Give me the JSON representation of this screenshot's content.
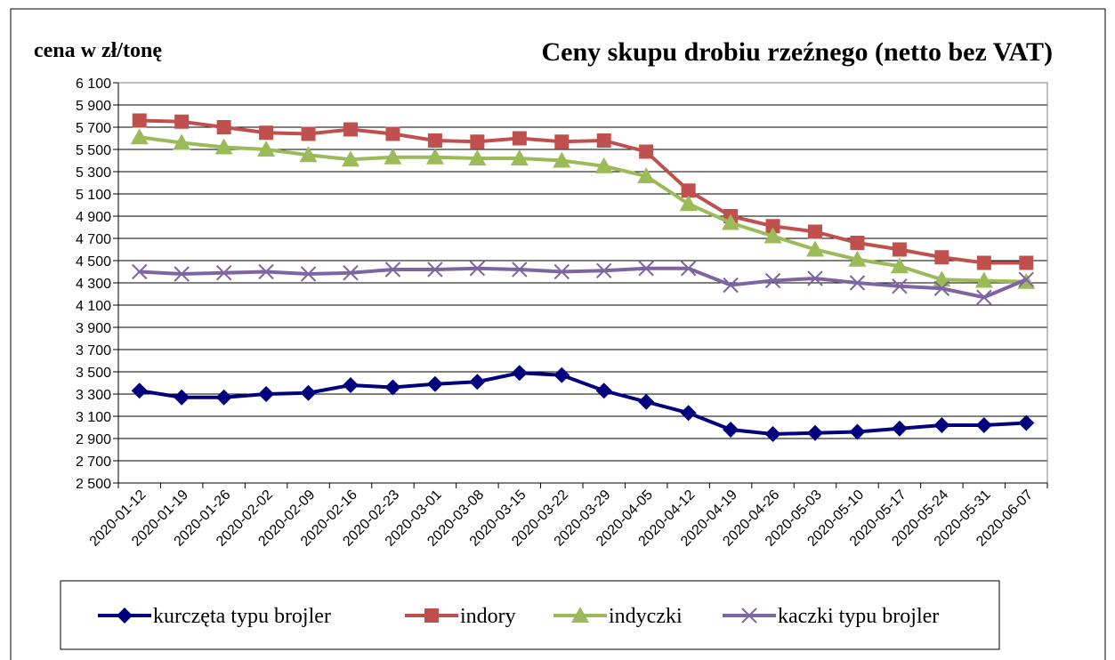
{
  "chart_data": {
    "type": "line",
    "title": "Ceny skupu drobiu rzeźnego (netto bez VAT)",
    "y_label": "cena w zł/tonę",
    "categories": [
      "2020-01-12",
      "2020-01-19",
      "2020-01-26",
      "2020-02-02",
      "2020-02-09",
      "2020-02-16",
      "2020-02-23",
      "2020-03-01",
      "2020-03-08",
      "2020-03-15",
      "2020-03-22",
      "2020-03-29",
      "2020-04-05",
      "2020-04-12",
      "2020-04-19",
      "2020-04-26",
      "2020-05-03",
      "2020-05-10",
      "2020-05-17",
      "2020-05-24",
      "2020-05-31",
      "2020-06-07"
    ],
    "series": [
      {
        "name": "kurczęta typu brojler",
        "color": "#00007f",
        "marker": "diamond",
        "values": [
          3330,
          3270,
          3270,
          3300,
          3310,
          3380,
          3360,
          3390,
          3410,
          3490,
          3470,
          3330,
          3230,
          3130,
          2980,
          2940,
          2950,
          2960,
          2990,
          3020,
          3020,
          3040
        ]
      },
      {
        "name": "indory",
        "color": "#c0504d",
        "marker": "square",
        "values": [
          5760,
          5750,
          5700,
          5650,
          5640,
          5680,
          5640,
          5580,
          5570,
          5600,
          5570,
          5580,
          5480,
          5130,
          4900,
          4810,
          4760,
          4660,
          4600,
          4530,
          4480,
          4480
        ]
      },
      {
        "name": "indyczki",
        "color": "#9bbb59",
        "marker": "triangle",
        "values": [
          5610,
          5560,
          5520,
          5500,
          5450,
          5410,
          5430,
          5430,
          5420,
          5420,
          5400,
          5350,
          5260,
          5010,
          4840,
          4720,
          4600,
          4510,
          4450,
          4330,
          4320,
          4310
        ]
      },
      {
        "name": "kaczki typu brojler",
        "color": "#8064a2",
        "marker": "x",
        "values": [
          4400,
          4380,
          4390,
          4400,
          4380,
          4390,
          4420,
          4420,
          4430,
          4420,
          4400,
          4410,
          4430,
          4430,
          4280,
          4320,
          4340,
          4300,
          4270,
          4250,
          4170,
          4330
        ]
      }
    ],
    "ylim": [
      2500,
      6100
    ],
    "yticks": [
      {
        "value": 2500,
        "label": "2 500"
      },
      {
        "value": 2700,
        "label": "2 700"
      },
      {
        "value": 2900,
        "label": "2 900"
      },
      {
        "value": 3100,
        "label": "3 100"
      },
      {
        "value": 3300,
        "label": "3 300"
      },
      {
        "value": 3500,
        "label": "3 500"
      },
      {
        "value": 3700,
        "label": "3 700"
      },
      {
        "value": 3900,
        "label": "3 900"
      },
      {
        "value": 4100,
        "label": "4 100"
      },
      {
        "value": 4300,
        "label": "4 300"
      },
      {
        "value": 4500,
        "label": "4 500"
      },
      {
        "value": 4700,
        "label": "4 700"
      },
      {
        "value": 4900,
        "label": "4 900"
      },
      {
        "value": 5100,
        "label": "5 100"
      },
      {
        "value": 5300,
        "label": "5 300"
      },
      {
        "value": 5500,
        "label": "5 500"
      },
      {
        "value": 5700,
        "label": "5 700"
      },
      {
        "value": 5900,
        "label": "5 900"
      },
      {
        "value": 6100,
        "label": "6 100"
      }
    ],
    "grid": true,
    "legend": "bottom"
  }
}
